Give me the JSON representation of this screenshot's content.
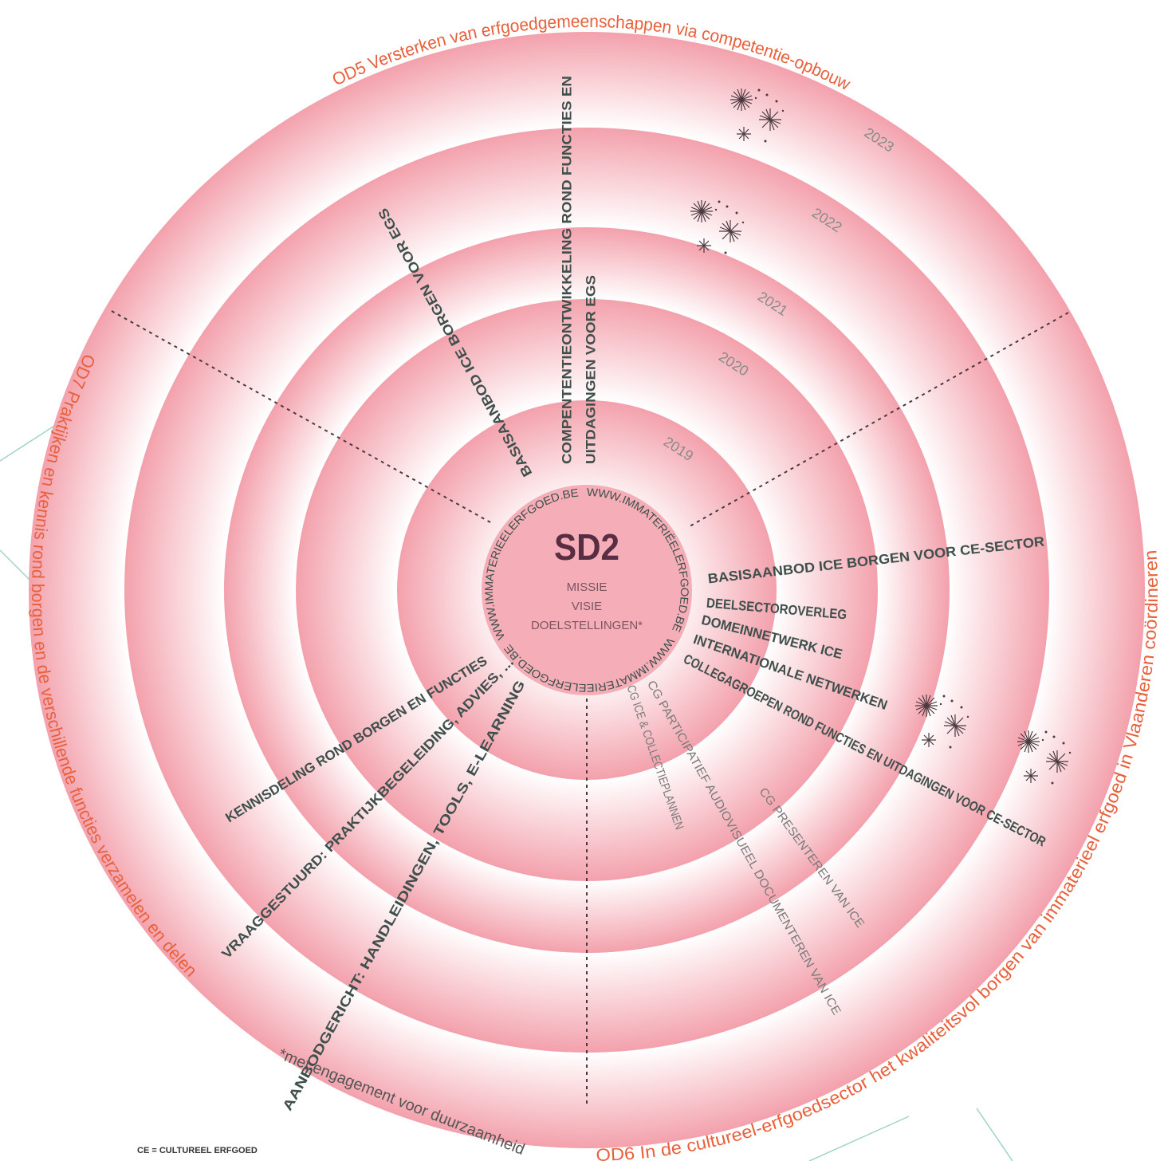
{
  "objectives": {
    "od5": "OD5 Versterken van erfgoedgemeenschappen via competentie-opbouw",
    "od6": "OD6 In de cultureel-erfgoedsector het kwaliteitsvol borgen van immaterieel erfgoed in Vlaanderen coördineren",
    "od7": "OD7 Praktijken en kennis rond borgen en de verschillende functies verzamelen en delen"
  },
  "center": {
    "title": "SD2",
    "lines": [
      "MISSIE",
      "VISIE",
      "DOELSTELLINGEN*"
    ]
  },
  "website": [
    "WWW.IMMATERIEELERFGOED.BE",
    "WWW.IMMATERIËELERFGOED.BE",
    "WWW.IMMATERIEELERFGOED.BE"
  ],
  "years": [
    "2019",
    "2020",
    "2021",
    "2022",
    "2023"
  ],
  "top_labels": [
    "COMPENTENTIEONTWIKKELING ROND FUNCTIES EN",
    "UITDAGINGEN VOOR EGS",
    "BASISAANBOD ICE BORGEN VOOR EGS"
  ],
  "right_labels": [
    "BASISAANBOD ICE BORGEN VOOR CE-SECTOR",
    "DEELSECTOROVERLEG",
    "DOMEINNETWERK ICE",
    "INTERNATIONALE NETWERKEN",
    "COLLEGAGROEPEN ROND FUNCTIES EN UITDAGINGEN VOOR CE-SECTOR"
  ],
  "left_labels": [
    "KENNISDELING ROND BORGEN EN FUNCTIES",
    "VRAAGGESTUURD: PRAKTIJKBEGELEIDING, ADVIES, ...",
    "AANBODGERICHT: HANDLEIDINGEN, TOOLS, E-LEARNING"
  ],
  "cg_labels": [
    "CG ICE & COLLECTIEPLANNEN",
    "CG PARTICIPATIEF AUDIOVISUEEL DOCUMENTEREN VAN ICE",
    "CG PRESENTEREN VAN ICE"
  ],
  "footnote": "*met engagement voor duurzaamheid",
  "legend": "CE = CULTUREEL ERFGOED"
}
